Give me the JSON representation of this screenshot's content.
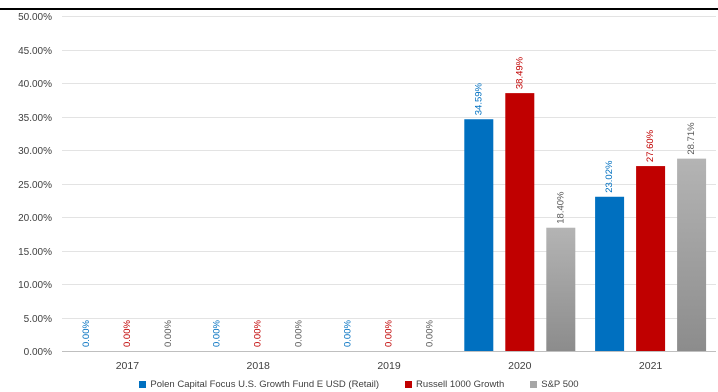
{
  "chart_data": {
    "type": "bar",
    "title": "",
    "categories": [
      "2017",
      "2018",
      "2019",
      "2020",
      "2021"
    ],
    "series": [
      {
        "name": "Polen Capital Focus U.S. Growth Fund E USD (Retail)",
        "color": "#0070C0",
        "values": [
          0.0,
          0.0,
          0.0,
          34.59,
          23.02
        ],
        "labels": [
          "0.00%",
          "0.00%",
          "0.00%",
          "34.59%",
          "23.02%"
        ]
      },
      {
        "name": "Russell 1000 Growth",
        "color": "#C00000",
        "values": [
          0.0,
          0.0,
          0.0,
          38.49,
          27.6
        ],
        "labels": [
          "0.00%",
          "0.00%",
          "0.00%",
          "38.49%",
          "27.60%"
        ]
      },
      {
        "name": "S&P 500",
        "color": "#A6A6A6",
        "values": [
          0.0,
          0.0,
          0.0,
          18.4,
          28.71
        ],
        "labels": [
          "0.00%",
          "0.00%",
          "0.00%",
          "18.40%",
          "28.71%"
        ]
      }
    ],
    "y_ticks": [
      0,
      5,
      10,
      15,
      20,
      25,
      30,
      35,
      40,
      45,
      50
    ],
    "y_tick_labels": [
      "0.00%",
      "5.00%",
      "10.00%",
      "15.00%",
      "20.00%",
      "25.00%",
      "30.00%",
      "35.00%",
      "40.00%",
      "45.00%",
      "50.00%"
    ],
    "ylim": [
      0,
      50
    ],
    "xlabel": "",
    "ylabel": "",
    "grid": true,
    "legend_position": "bottom"
  }
}
